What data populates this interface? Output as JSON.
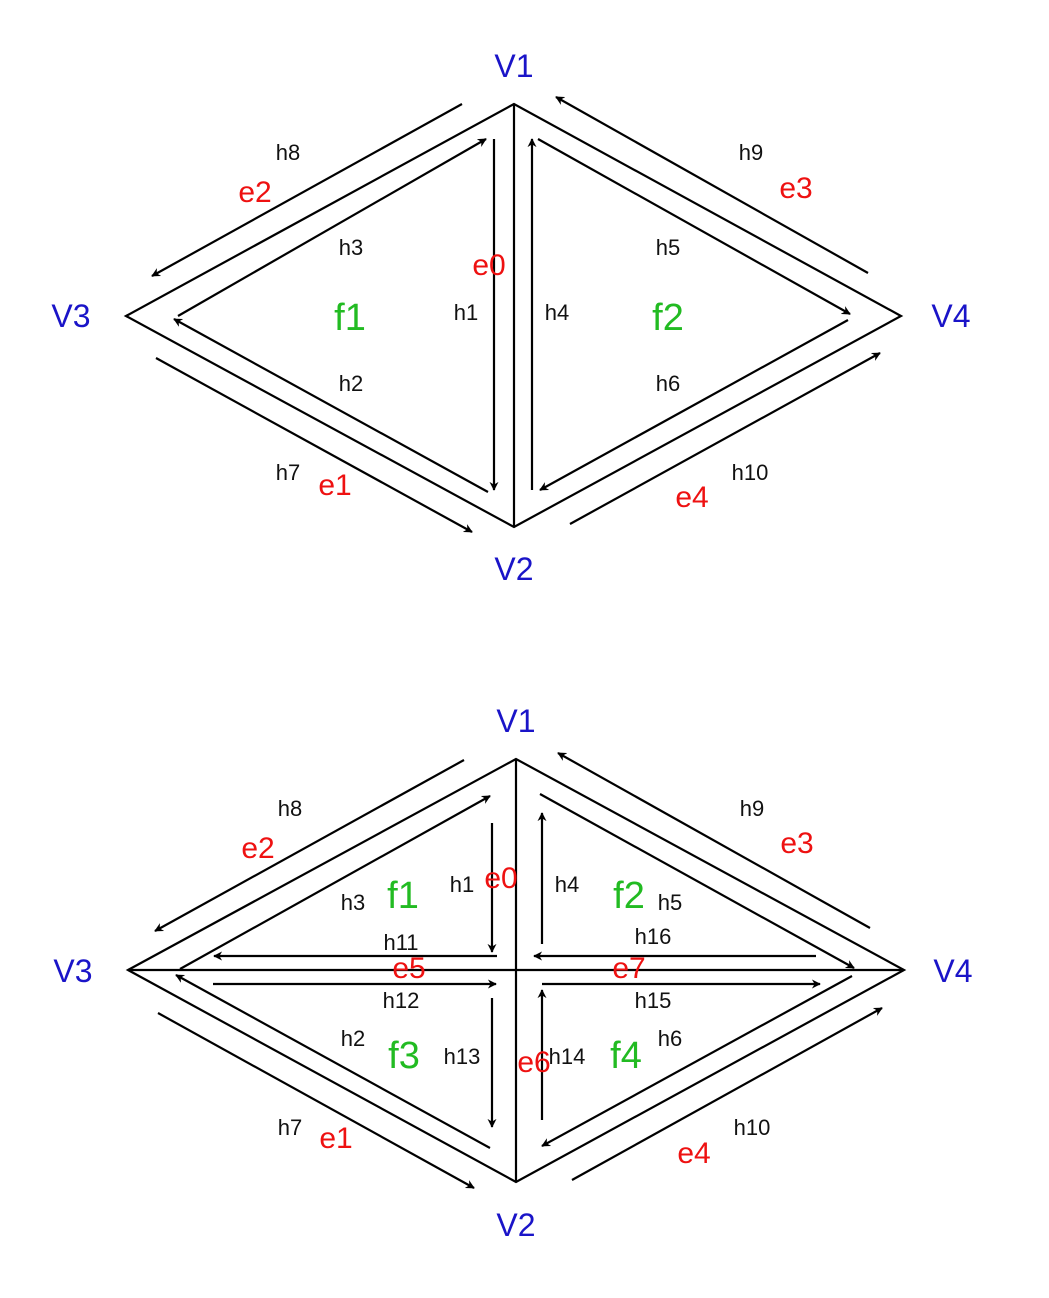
{
  "diagrams": [
    {
      "vertices": [
        "V1",
        "V2",
        "V3",
        "V4"
      ],
      "faces": [
        "f1",
        "f2"
      ],
      "edges": [
        "e0",
        "e1",
        "e2",
        "e3",
        "e4"
      ],
      "halfedges": [
        "h1",
        "h2",
        "h3",
        "h4",
        "h5",
        "h6",
        "h7",
        "h8",
        "h9",
        "h10"
      ]
    },
    {
      "vertices": [
        "V1",
        "V2",
        "V3",
        "V4"
      ],
      "faces": [
        "f1",
        "f2",
        "f3",
        "f4"
      ],
      "edges": [
        "e0",
        "e1",
        "e2",
        "e3",
        "e4",
        "e5",
        "e6",
        "e7"
      ],
      "halfedges": [
        "h1",
        "h2",
        "h3",
        "h4",
        "h5",
        "h6",
        "h7",
        "h8",
        "h9",
        "h10",
        "h11",
        "h12",
        "h13",
        "h14",
        "h15",
        "h16"
      ]
    }
  ],
  "colors": {
    "vertex": "#1a14c8",
    "face": "#22bb22",
    "edge": "#ee1111",
    "halfedge": "#111111"
  }
}
